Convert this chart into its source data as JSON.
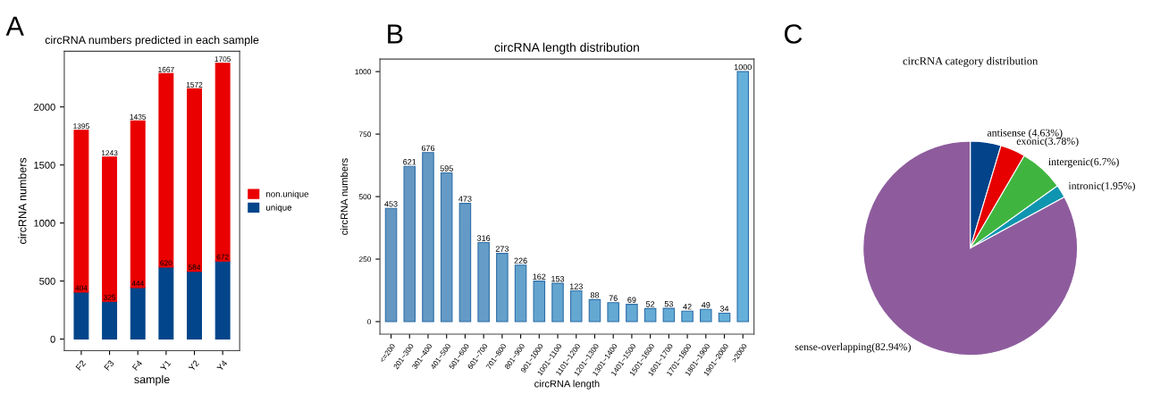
{
  "chart_data": [
    {
      "type": "bar",
      "title": "circRNA numbers predicted in each sample",
      "xlabel": "sample",
      "ylabel": "circRNA numbers",
      "categories": [
        "F2",
        "F3",
        "F4",
        "Y1",
        "Y2",
        "Y4"
      ],
      "stacked": true,
      "series": [
        {
          "name": "unique",
          "color": "#02458a",
          "values": [
            404,
            325,
            444,
            620,
            584,
            672
          ]
        },
        {
          "name": "non.unique",
          "color": "#ea0000",
          "values": [
            1395,
            1243,
            1435,
            1667,
            1572,
            1705
          ]
        }
      ],
      "ylim": [
        -100,
        2480
      ],
      "yticks": [
        0,
        500,
        1000,
        1500,
        2000
      ],
      "data_labels": true,
      "legend": "right",
      "annotations": [
        "A"
      ]
    },
    {
      "type": "bar",
      "title": "circRNA length distribution",
      "xlabel": "circRNA length",
      "ylabel": "circRNA numbers",
      "categories": [
        "<=200",
        "201~300",
        "301~400",
        "401~500",
        "501~600",
        "601~700",
        "701~800",
        "801~900",
        "901~1000",
        "1001~1100",
        "1101~1200",
        "1201~1300",
        "1301~1400",
        "1401~1500",
        "1501~1600",
        "1601~1700",
        "1701~1800",
        "1801~1900",
        "1901~2000",
        ">2000"
      ],
      "values": [
        453,
        621,
        676,
        595,
        473,
        316,
        273,
        226,
        162,
        153,
        123,
        88,
        76,
        69,
        52,
        53,
        42,
        49,
        34,
        1000
      ],
      "colors": [
        "#6497c2",
        "#6498c3",
        "#6499c4",
        "#649ac5",
        "#649bc6",
        "#649dc8",
        "#64a0ca",
        "#64a2cc",
        "#64a4ce",
        "#64a5cf",
        "#64a7d1",
        "#64a8d2",
        "#64a9d3",
        "#64aad4",
        "#64abd5",
        "#64acd6",
        "#64add7",
        "#64aed8",
        "#64afd9",
        "#64b0db"
      ],
      "ylim": [
        -50,
        1050
      ],
      "yticks": [
        0,
        250,
        500,
        750,
        1000
      ],
      "data_labels": true,
      "annotations": [
        "B"
      ]
    },
    {
      "type": "pie",
      "title": "circRNA category distribution",
      "categories": [
        "antisense (4.63%)",
        "exonic(3.78%)",
        "intergenic(6.7%)",
        "intronic(1.95%)",
        "sense-overlapping(82.94%)"
      ],
      "values": [
        4.63,
        3.78,
        6.7,
        1.95,
        82.94
      ],
      "colors": [
        "#02438a",
        "#e60000",
        "#3fb53f",
        "#0f95b0",
        "#8e5c9d"
      ],
      "annotations": [
        "C"
      ]
    }
  ]
}
